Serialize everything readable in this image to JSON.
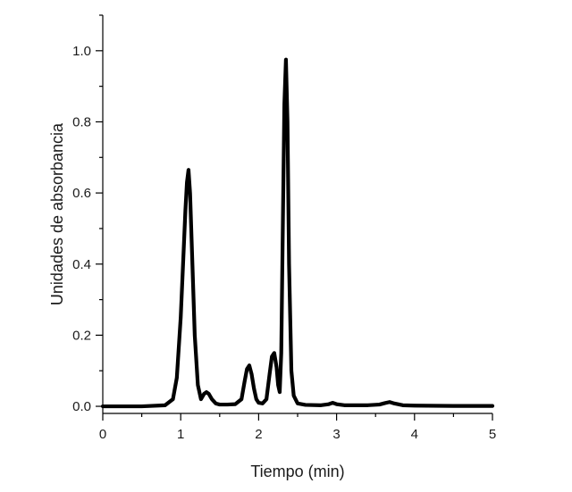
{
  "chart_data": {
    "type": "line",
    "title": "",
    "xlabel": "Tiempo (min)",
    "ylabel": "Unidades de absorbancia",
    "xlim": [
      0,
      5
    ],
    "ylim": [
      -0.02,
      1.1
    ],
    "x_ticks": [
      0,
      1,
      2,
      3,
      4,
      5
    ],
    "x_tick_labels": [
      "0",
      "1",
      "2",
      "3",
      "4",
      "5"
    ],
    "y_ticks": [
      0.0,
      0.2,
      0.4,
      0.6,
      0.8,
      1.0
    ],
    "y_tick_labels": [
      "0.0",
      "0.2",
      "0.4",
      "0.6",
      "0.8",
      "1.0"
    ],
    "grid": false,
    "legend": "none",
    "line_color": "#000000",
    "series": [
      {
        "x": [
          0.0,
          0.5,
          0.8,
          0.9,
          0.95,
          1.0,
          1.03,
          1.06,
          1.08,
          1.1,
          1.12,
          1.15,
          1.18,
          1.22,
          1.26,
          1.3,
          1.33,
          1.36,
          1.4,
          1.45,
          1.5,
          1.6,
          1.7,
          1.78,
          1.82,
          1.85,
          1.88,
          1.91,
          1.94,
          1.97,
          2.0,
          2.05,
          2.1,
          2.14,
          2.17,
          2.2,
          2.23,
          2.25,
          2.27,
          2.29,
          2.31,
          2.33,
          2.35,
          2.37,
          2.39,
          2.42,
          2.45,
          2.5,
          2.6,
          2.8,
          2.9,
          2.95,
          3.0,
          3.1,
          3.4,
          3.55,
          3.62,
          3.68,
          3.74,
          3.85,
          4.0,
          4.5,
          5.0
        ],
        "y": [
          0.0,
          0.0,
          0.003,
          0.02,
          0.08,
          0.25,
          0.4,
          0.55,
          0.63,
          0.665,
          0.6,
          0.4,
          0.2,
          0.06,
          0.02,
          0.035,
          0.04,
          0.035,
          0.02,
          0.008,
          0.005,
          0.005,
          0.006,
          0.02,
          0.07,
          0.105,
          0.115,
          0.09,
          0.05,
          0.02,
          0.01,
          0.008,
          0.02,
          0.09,
          0.14,
          0.15,
          0.11,
          0.06,
          0.04,
          0.15,
          0.5,
          0.85,
          0.975,
          0.8,
          0.4,
          0.1,
          0.03,
          0.008,
          0.004,
          0.003,
          0.006,
          0.01,
          0.006,
          0.003,
          0.003,
          0.005,
          0.009,
          0.012,
          0.008,
          0.003,
          0.002,
          0.001,
          0.001
        ]
      }
    ]
  }
}
